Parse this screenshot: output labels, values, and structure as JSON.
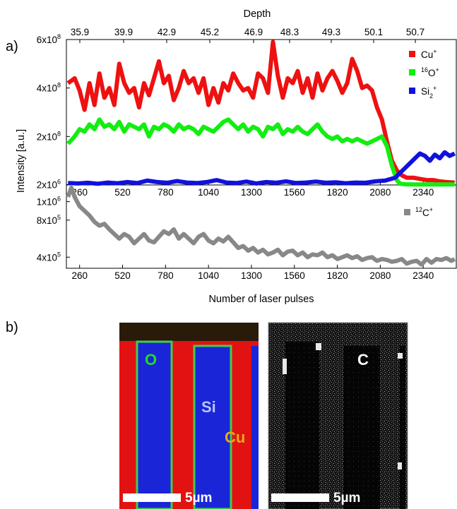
{
  "panel_labels": {
    "a": "a)",
    "b": "b)"
  },
  "chart_data": [
    {
      "type": "line",
      "top_axis_label": "Depth",
      "top_ticks": [
        "35.9",
        "39.9",
        "42.9",
        "45.2",
        "46.9",
        "48.3",
        "49.3",
        "50.1",
        "50.7"
      ],
      "xlabel": "Number of laser pulses",
      "ylabel": "Intensity [a.u.]",
      "xlim": [
        180,
        2540
      ],
      "x_ticks": [
        260,
        520,
        780,
        1040,
        1300,
        1560,
        1820,
        2080,
        2340
      ],
      "y_ticks_upper": [
        {
          "base": "2x10",
          "exp": "6",
          "v": 2000000
        },
        {
          "base": "2x10",
          "exp": "8",
          "v": 200000000
        },
        {
          "base": "4x10",
          "exp": "8",
          "v": 400000000
        },
        {
          "base": "6x10",
          "exp": "8",
          "v": 600000000
        }
      ],
      "y_ticks_lower": [
        {
          "base": "4x10",
          "exp": "5",
          "v": 400000
        },
        {
          "base": "8x10",
          "exp": "5",
          "v": 800000
        },
        {
          "base": "1x10",
          "exp": "6",
          "v": 1000000
        }
      ],
      "ylim_upper": [
        0,
        600000000
      ],
      "ylim_lower": [
        280000,
        1180000
      ],
      "legend": [
        {
          "key": "cu",
          "pre": "",
          "main": "Cu",
          "sub": "",
          "sup": "+"
        },
        {
          "key": "o",
          "pre": "16",
          "main": "O",
          "sub": "",
          "sup": "+"
        },
        {
          "key": "si",
          "pre": "",
          "main": "Si",
          "sub": "2",
          "sup": "+"
        },
        {
          "key": "c",
          "pre": "12",
          "main": "C",
          "sub": "",
          "sup": "+"
        }
      ],
      "colors": {
        "cu": "#ee1111",
        "o": "#11ee11",
        "si": "#1111dd",
        "c": "#888888"
      },
      "series": [
        {
          "key": "cu",
          "panel": "upper",
          "x": [
            190,
            230,
            260,
            290,
            320,
            350,
            380,
            410,
            440,
            470,
            500,
            530,
            560,
            590,
            620,
            650,
            680,
            710,
            740,
            770,
            800,
            830,
            860,
            890,
            920,
            950,
            980,
            1010,
            1040,
            1070,
            1100,
            1130,
            1160,
            1190,
            1220,
            1250,
            1280,
            1310,
            1340,
            1370,
            1400,
            1430,
            1460,
            1490,
            1520,
            1550,
            1580,
            1610,
            1640,
            1670,
            1700,
            1730,
            1760,
            1790,
            1820,
            1850,
            1880,
            1910,
            1940,
            1970,
            2000,
            2030,
            2060,
            2090,
            2120,
            2150,
            2180,
            2210,
            2240,
            2280,
            2320,
            2360,
            2400,
            2440,
            2480,
            2530
          ],
          "y": [
            420000000,
            440000000,
            390000000,
            310000000,
            420000000,
            330000000,
            460000000,
            360000000,
            400000000,
            330000000,
            500000000,
            420000000,
            380000000,
            400000000,
            320000000,
            420000000,
            370000000,
            440000000,
            510000000,
            420000000,
            450000000,
            350000000,
            400000000,
            470000000,
            420000000,
            440000000,
            380000000,
            440000000,
            330000000,
            400000000,
            340000000,
            420000000,
            390000000,
            460000000,
            420000000,
            390000000,
            400000000,
            360000000,
            460000000,
            440000000,
            380000000,
            590000000,
            450000000,
            360000000,
            440000000,
            420000000,
            470000000,
            380000000,
            440000000,
            360000000,
            460000000,
            390000000,
            440000000,
            470000000,
            430000000,
            380000000,
            420000000,
            520000000,
            470000000,
            400000000,
            410000000,
            390000000,
            320000000,
            270000000,
            180000000,
            100000000,
            60000000,
            40000000,
            30000000,
            30000000,
            25000000,
            20000000,
            20000000,
            15000000,
            12000000,
            10000000
          ]
        },
        {
          "key": "o",
          "panel": "upper",
          "x": [
            190,
            230,
            260,
            290,
            320,
            350,
            380,
            410,
            440,
            470,
            500,
            530,
            560,
            590,
            620,
            650,
            680,
            710,
            740,
            770,
            800,
            830,
            860,
            890,
            920,
            950,
            980,
            1010,
            1040,
            1070,
            1100,
            1130,
            1160,
            1190,
            1220,
            1250,
            1280,
            1310,
            1340,
            1370,
            1400,
            1430,
            1460,
            1490,
            1520,
            1550,
            1580,
            1610,
            1640,
            1670,
            1700,
            1730,
            1760,
            1790,
            1820,
            1850,
            1880,
            1910,
            1940,
            1970,
            2000,
            2030,
            2060,
            2090,
            2120,
            2150,
            2180,
            2200,
            2230,
            2280,
            2330,
            2400,
            2480,
            2530
          ],
          "y": [
            170000000,
            200000000,
            230000000,
            220000000,
            250000000,
            230000000,
            270000000,
            240000000,
            250000000,
            230000000,
            260000000,
            220000000,
            250000000,
            240000000,
            230000000,
            250000000,
            200000000,
            240000000,
            230000000,
            250000000,
            240000000,
            220000000,
            250000000,
            230000000,
            240000000,
            230000000,
            210000000,
            240000000,
            230000000,
            220000000,
            240000000,
            260000000,
            270000000,
            250000000,
            230000000,
            250000000,
            220000000,
            240000000,
            230000000,
            200000000,
            240000000,
            230000000,
            250000000,
            210000000,
            230000000,
            220000000,
            240000000,
            220000000,
            210000000,
            230000000,
            250000000,
            220000000,
            200000000,
            190000000,
            200000000,
            180000000,
            190000000,
            180000000,
            190000000,
            180000000,
            170000000,
            180000000,
            190000000,
            200000000,
            160000000,
            80000000,
            20000000,
            5000000,
            3000000,
            2000000,
            2000000,
            2000000,
            2000000,
            2000000
          ]
        },
        {
          "key": "si",
          "panel": "upper",
          "x": [
            190,
            250,
            310,
            370,
            430,
            490,
            550,
            610,
            670,
            700,
            730,
            790,
            850,
            910,
            970,
            1030,
            1090,
            1150,
            1210,
            1270,
            1330,
            1390,
            1450,
            1510,
            1570,
            1630,
            1690,
            1750,
            1810,
            1870,
            1930,
            1990,
            2050,
            2110,
            2170,
            2200,
            2230,
            2260,
            2290,
            2320,
            2350,
            2380,
            2410,
            2440,
            2470,
            2500,
            2530
          ],
          "y": [
            8000000,
            6000000,
            9000000,
            5000000,
            10000000,
            7000000,
            12000000,
            8000000,
            18000000,
            15000000,
            12000000,
            9000000,
            16000000,
            10000000,
            8000000,
            12000000,
            20000000,
            10000000,
            8000000,
            14000000,
            6000000,
            12000000,
            9000000,
            15000000,
            8000000,
            10000000,
            14000000,
            9000000,
            11000000,
            7000000,
            10000000,
            9000000,
            15000000,
            18000000,
            30000000,
            50000000,
            70000000,
            90000000,
            110000000,
            130000000,
            120000000,
            100000000,
            125000000,
            110000000,
            135000000,
            120000000,
            130000000
          ]
        },
        {
          "key": "c",
          "panel": "lower",
          "x": [
            190,
            210,
            230,
            260,
            290,
            320,
            350,
            380,
            410,
            440,
            470,
            500,
            530,
            560,
            590,
            620,
            650,
            680,
            710,
            740,
            770,
            800,
            830,
            860,
            890,
            920,
            950,
            980,
            1010,
            1040,
            1070,
            1100,
            1130,
            1160,
            1190,
            1220,
            1250,
            1280,
            1310,
            1340,
            1370,
            1400,
            1430,
            1460,
            1490,
            1520,
            1550,
            1580,
            1610,
            1640,
            1670,
            1700,
            1730,
            1760,
            1790,
            1820,
            1850,
            1880,
            1910,
            1940,
            1970,
            2000,
            2030,
            2060,
            2090,
            2120,
            2150,
            2180,
            2210,
            2240,
            2270,
            2300,
            2330,
            2360,
            2390,
            2420,
            2450,
            2480,
            2510,
            2530
          ],
          "y": [
            1050000,
            1150000,
            1050000,
            950000,
            900000,
            850000,
            780000,
            740000,
            760000,
            700000,
            650000,
            600000,
            650000,
            620000,
            550000,
            600000,
            650000,
            580000,
            560000,
            620000,
            680000,
            650000,
            700000,
            600000,
            650000,
            600000,
            550000,
            620000,
            650000,
            580000,
            550000,
            600000,
            570000,
            620000,
            560000,
            500000,
            520000,
            470000,
            500000,
            450000,
            480000,
            430000,
            450000,
            480000,
            420000,
            460000,
            470000,
            420000,
            450000,
            400000,
            430000,
            420000,
            450000,
            400000,
            420000,
            380000,
            400000,
            420000,
            390000,
            410000,
            370000,
            390000,
            400000,
            360000,
            380000,
            370000,
            350000,
            360000,
            380000,
            330000,
            350000,
            360000,
            320000,
            380000,
            340000,
            380000,
            370000,
            390000,
            360000,
            380000
          ]
        }
      ]
    }
  ],
  "micrographs": {
    "left": {
      "labels": [
        "O",
        "Si",
        "Cu"
      ],
      "scalebar": "5µm"
    },
    "right": {
      "labels": [
        "C"
      ],
      "scalebar": "5µm"
    }
  }
}
